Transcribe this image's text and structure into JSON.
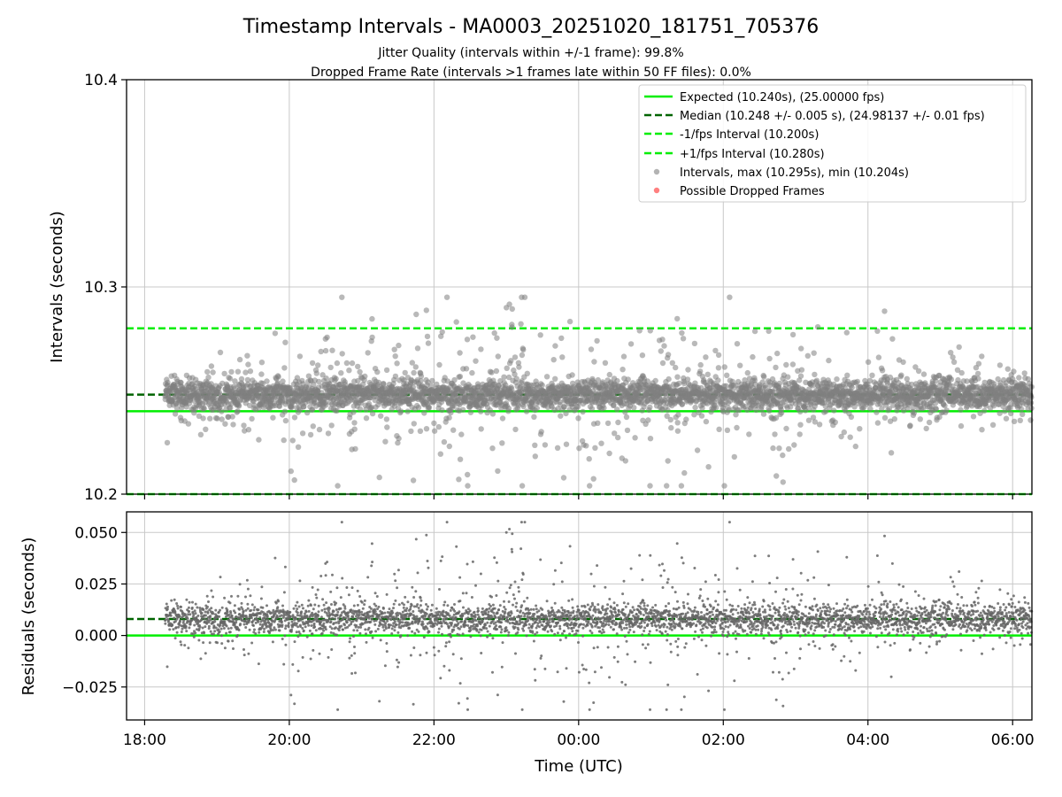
{
  "figure": {
    "title": "Timestamp Intervals - MA0003_20251020_181751_705376",
    "subtitle_lines": [
      "Jitter Quality (intervals within +/-1 frame): 99.8%",
      "Dropped Frame Rate (intervals >1 frames late within 50 FF files): 0.0%"
    ]
  },
  "colors": {
    "expected": "#00ee00",
    "median": "#006400",
    "bounds": "#00ee00",
    "points": "#808080",
    "residual_points": "#666666",
    "dropped": "#ff6060",
    "grid": "#c8c8c8"
  },
  "chart_data": [
    {
      "type": "scatter",
      "panel": "intervals",
      "title": "",
      "xlabel": "",
      "ylabel": "Intervals (seconds)",
      "x_start": "18:17",
      "x_end": "06:00",
      "xlim": [
        "17:45",
        "06:16"
      ],
      "ylim": [
        10.2,
        10.4
      ],
      "yticks": [
        "10.2",
        "10.3",
        "10.4"
      ],
      "xticks": [
        "18:00",
        "20:00",
        "22:00",
        "00:00",
        "02:00",
        "04:00",
        "06:00"
      ],
      "grid": true,
      "legend_position": "top-right",
      "reference_lines": [
        {
          "name": "Expected (10.240s), (25.00000 fps)",
          "value": 10.24,
          "style": "solid"
        },
        {
          "name": "Median (10.248 +/- 0.005 s), (24.98137 +/- 0.01 fps)",
          "value": 10.248,
          "style": "dashed"
        },
        {
          "name": "-1/fps Interval (10.200s)",
          "value": 10.2,
          "style": "dashed"
        },
        {
          "name": "+1/fps Interval (10.280s)",
          "value": 10.28,
          "style": "dashed"
        }
      ],
      "series": [
        {
          "name": "Intervals, max (10.295s), min (10.204s)",
          "median": 10.248,
          "spread": 0.005,
          "max": 10.295,
          "min": 10.204,
          "count": 4000
        },
        {
          "name": "Possible Dropped Frames",
          "count": 0
        }
      ]
    },
    {
      "type": "scatter",
      "panel": "residuals",
      "title": "",
      "xlabel": "Time (UTC)",
      "ylabel": "Residuals (seconds)",
      "x_start": "18:17",
      "x_end": "06:00",
      "xlim": [
        "17:45",
        "06:16"
      ],
      "ylim": [
        -0.041,
        0.06
      ],
      "yticks": [
        "−0.025",
        "0.000",
        "0.025",
        "0.050"
      ],
      "ytick_values": [
        -0.025,
        0.0,
        0.025,
        0.05
      ],
      "xticks": [
        "18:00",
        "20:00",
        "22:00",
        "00:00",
        "02:00",
        "04:00",
        "06:00"
      ],
      "grid": true,
      "reference_lines": [
        {
          "value": 0.0,
          "style": "solid"
        },
        {
          "value": 0.008,
          "style": "dashed"
        }
      ],
      "series": [
        {
          "name": "Residuals",
          "median": 0.008,
          "max": 0.055,
          "min": -0.036,
          "count": 4000
        }
      ]
    }
  ]
}
